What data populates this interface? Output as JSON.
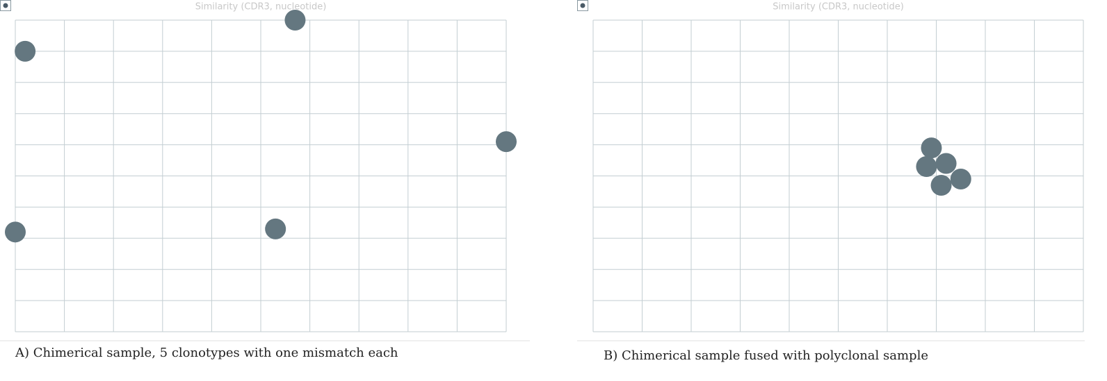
{
  "chart_data": [
    {
      "type": "scatter",
      "title": "Similarity (CDR3, nucleotide)",
      "caption": "A) Chimerical sample, 5 clonotypes with one mismatch each",
      "xlim": [
        0,
        10
      ],
      "ylim": [
        0,
        10
      ],
      "xticks": [
        0,
        1,
        2,
        3,
        4,
        5,
        6,
        7,
        8,
        9,
        10
      ],
      "yticks": [
        0,
        1,
        2,
        3,
        4,
        5,
        6,
        7,
        8,
        9,
        10
      ],
      "grid": true,
      "series": [
        {
          "color": "#647780",
          "x": [
            0.2,
            5.7,
            10.0,
            0,
            5.3
          ],
          "values": [
            9.0,
            10.0,
            6.1,
            3.2,
            3.3
          ]
        }
      ]
    },
    {
      "type": "scatter",
      "title": "Similarity (CDR3, nucleotide)",
      "caption": "B) Chimerical sample fused with polyclonal sample",
      "xlim": [
        0,
        10
      ],
      "ylim": [
        0,
        10
      ],
      "xticks": [
        0,
        1,
        2,
        3,
        4,
        5,
        6,
        7,
        8,
        9,
        10
      ],
      "yticks": [
        0,
        1,
        2,
        3,
        4,
        5,
        6,
        7,
        8,
        9,
        10
      ],
      "grid": true,
      "series": [
        {
          "color": "#647780",
          "x": [
            6.9,
            6.8,
            7.2,
            7.1,
            7.5
          ],
          "values": [
            5.9,
            5.3,
            5.4,
            4.7,
            4.9
          ]
        }
      ]
    }
  ]
}
